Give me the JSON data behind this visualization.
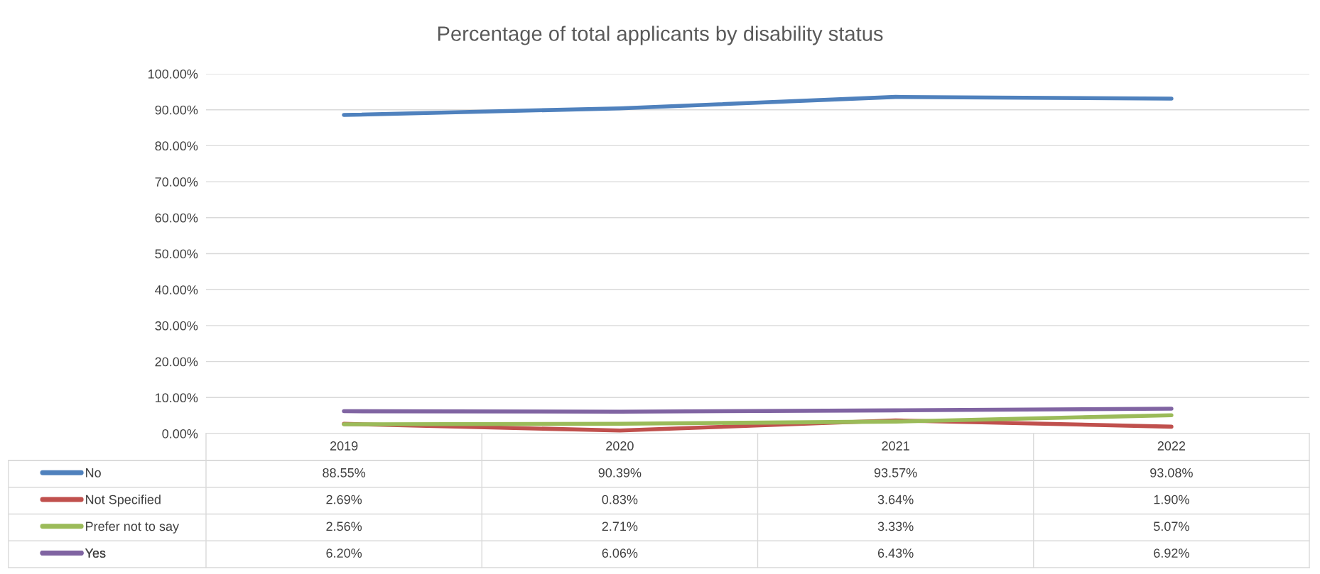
{
  "chart_data": {
    "type": "line",
    "title": "Percentage of total applicants by disability status",
    "categories": [
      "2019",
      "2020",
      "2021",
      "2022"
    ],
    "series": [
      {
        "name": "No",
        "color": "#4f81bd",
        "values": [
          88.55,
          90.39,
          93.57,
          93.08
        ],
        "value_labels": [
          "88.55%",
          "90.39%",
          "93.57%",
          "93.08%"
        ]
      },
      {
        "name": "Not Specified",
        "color": "#c0504d",
        "values": [
          2.69,
          0.83,
          3.64,
          1.9
        ],
        "value_labels": [
          "2.69%",
          "0.83%",
          "3.64%",
          "1.90%"
        ]
      },
      {
        "name": "Prefer not to say",
        "color": "#9bbb59",
        "values": [
          2.56,
          2.71,
          3.33,
          5.07
        ],
        "value_labels": [
          "2.56%",
          "2.71%",
          "3.33%",
          "5.07%"
        ]
      },
      {
        "name": "Yes",
        "color": "#8064a2",
        "values": [
          6.2,
          6.06,
          6.43,
          6.92
        ],
        "value_labels": [
          "6.20%",
          "6.06%",
          "6.43%",
          "6.92%"
        ]
      }
    ],
    "ylim": [
      0,
      100
    ],
    "yticks": [
      {
        "value": 0,
        "label": "0.00%"
      },
      {
        "value": 10,
        "label": "10.00%"
      },
      {
        "value": 20,
        "label": "20.00%"
      },
      {
        "value": 30,
        "label": "30.00%"
      },
      {
        "value": 40,
        "label": "40.00%"
      },
      {
        "value": 50,
        "label": "50.00%"
      },
      {
        "value": 60,
        "label": "60.00%"
      },
      {
        "value": 70,
        "label": "70.00%"
      },
      {
        "value": 80,
        "label": "80.00%"
      },
      {
        "value": 90,
        "label": "90.00%"
      },
      {
        "value": 100,
        "label": "100.00%"
      }
    ],
    "grid": "y",
    "legend": "bottom",
    "marker": "none",
    "line_style": "solid"
  }
}
